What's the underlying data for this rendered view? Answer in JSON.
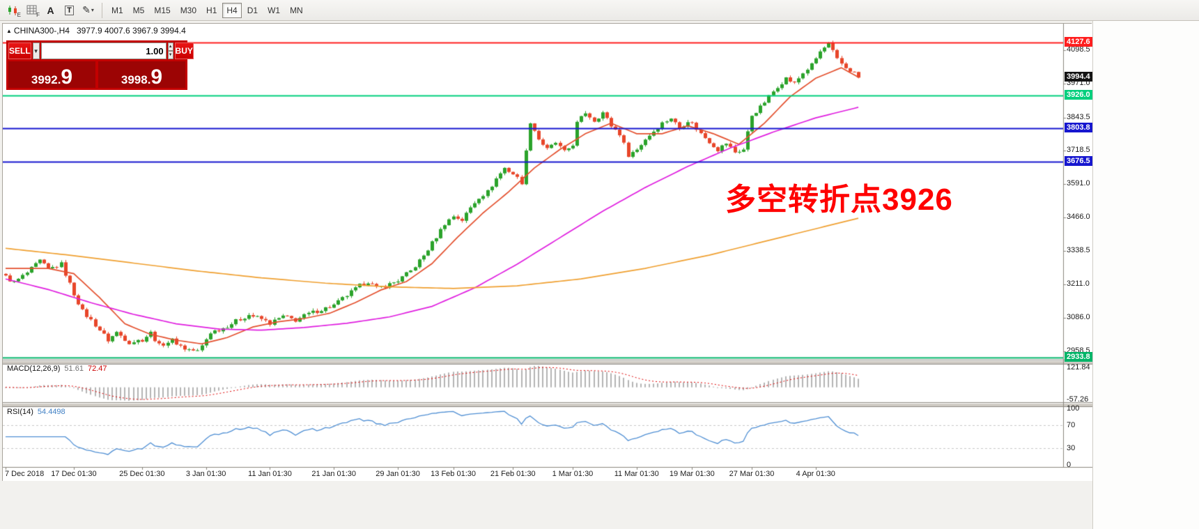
{
  "toolbar": {
    "tools": [
      {
        "name": "chart-mode-tool",
        "sub": "E"
      },
      {
        "name": "grid-tool",
        "sub": "F"
      },
      {
        "name": "text-tool",
        "label": "A"
      },
      {
        "name": "label-tool",
        "label": "T"
      },
      {
        "name": "draw-tool",
        "glyph": "✎",
        "arrow": "▾"
      }
    ],
    "timeframes": [
      "M1",
      "M5",
      "M15",
      "M30",
      "H1",
      "H4",
      "D1",
      "W1",
      "MN"
    ],
    "active_timeframe": "H4"
  },
  "chart_header": {
    "collapse_icon": "▲",
    "symbol": "CHINA300-,H4",
    "ohlc": "3977.9 4007.6 3967.9 3994.4"
  },
  "trade_panel": {
    "sell_label": "SELL",
    "buy_label": "BUY",
    "volume": "1.00",
    "dropdown_arrow": "▼",
    "spin_up": "▲",
    "spin_down": "▼",
    "sell_price": "3992.",
    "sell_price_big": "9",
    "buy_price": "3998.",
    "buy_price_big": "9"
  },
  "annotation": {
    "text": "多空转折点3926",
    "color": "#ff0000"
  },
  "price_axis": {
    "labels": [
      "4098.5",
      "3971.0",
      "3843.5",
      "3718.5",
      "3591.0",
      "3466.0",
      "3338.5",
      "3211.0",
      "3086.0",
      "2958.5"
    ],
    "badges": [
      {
        "text": "4127.6",
        "value": 4127.6,
        "bg": "#ff1e1e"
      },
      {
        "text": "3994.4",
        "value": 3994.4,
        "bg": "#141414"
      },
      {
        "text": "3926.0",
        "value": 3926.0,
        "bg": "#00cf7d"
      },
      {
        "text": "3803.8",
        "value": 3803.8,
        "bg": "#1616cf"
      },
      {
        "text": "3676.5",
        "value": 3676.5,
        "bg": "#1616cf"
      },
      {
        "text": "2933.8",
        "value": 2933.8,
        "bg": "#00b468"
      }
    ]
  },
  "time_axis": {
    "labels": [
      {
        "text": "7 Dec 2018",
        "bar": 0
      },
      {
        "text": "17 Dec 01:30",
        "bar": 16
      },
      {
        "text": "25 Dec 01:30",
        "bar": 32
      },
      {
        "text": "3 Jan 01:30",
        "bar": 47
      },
      {
        "text": "11 Jan 01:30",
        "bar": 62
      },
      {
        "text": "21 Jan 01:30",
        "bar": 77
      },
      {
        "text": "29 Jan 01:30",
        "bar": 92
      },
      {
        "text": "13 Feb 01:30",
        "bar": 105
      },
      {
        "text": "21 Feb 01:30",
        "bar": 119
      },
      {
        "text": "1 Mar 01:30",
        "bar": 133
      },
      {
        "text": "11 Mar 01:30",
        "bar": 148
      },
      {
        "text": "19 Mar 01:30",
        "bar": 161
      },
      {
        "text": "27 Mar 01:30",
        "bar": 175
      },
      {
        "text": "4 Apr 01:30",
        "bar": 190
      }
    ]
  },
  "chart_data": {
    "type": "candlestick",
    "symbol": "CHINA300-",
    "timeframe": "H4",
    "bars": 201,
    "last_price": 3994.4,
    "y_range": [
      2929,
      4159
    ],
    "colors": {
      "bull": "#2ba32b",
      "bear": "#e8462a",
      "ma_fast": "#e4502e",
      "ma_mid": "#e01ee0",
      "ma_slow": "#f0a030",
      "macd_hist": "#b4b4b4",
      "macd_signal": "#e00000",
      "rsi": "#4f8fd4"
    },
    "price_anchors": [
      [
        0,
        3240
      ],
      [
        2,
        3218
      ],
      [
        5,
        3255
      ],
      [
        8,
        3300
      ],
      [
        10,
        3268
      ],
      [
        13,
        3288
      ],
      [
        16,
        3175
      ],
      [
        18,
        3110
      ],
      [
        21,
        3058
      ],
      [
        24,
        3000
      ],
      [
        26,
        3030
      ],
      [
        29,
        2992
      ],
      [
        32,
        3002
      ],
      [
        34,
        3028
      ],
      [
        36,
        2980
      ],
      [
        39,
        3000
      ],
      [
        42,
        2968
      ],
      [
        45,
        2958
      ],
      [
        46,
        2978
      ],
      [
        48,
        3030
      ],
      [
        51,
        3046
      ],
      [
        54,
        3072
      ],
      [
        57,
        3096
      ],
      [
        60,
        3080
      ],
      [
        62,
        3064
      ],
      [
        65,
        3090
      ],
      [
        68,
        3076
      ],
      [
        71,
        3100
      ],
      [
        74,
        3116
      ],
      [
        77,
        3132
      ],
      [
        80,
        3170
      ],
      [
        83,
        3206
      ],
      [
        85,
        3222
      ],
      [
        87,
        3196
      ],
      [
        90,
        3212
      ],
      [
        92,
        3226
      ],
      [
        95,
        3262
      ],
      [
        98,
        3320
      ],
      [
        101,
        3392
      ],
      [
        103,
        3442
      ],
      [
        105,
        3470
      ],
      [
        107,
        3455
      ],
      [
        109,
        3502
      ],
      [
        111,
        3542
      ],
      [
        113,
        3562
      ],
      [
        115,
        3612
      ],
      [
        117,
        3652
      ],
      [
        119,
        3630
      ],
      [
        121,
        3598
      ],
      [
        123,
        3828
      ],
      [
        125,
        3762
      ],
      [
        127,
        3722
      ],
      [
        129,
        3748
      ],
      [
        131,
        3712
      ],
      [
        133,
        3742
      ],
      [
        134,
        3822
      ],
      [
        136,
        3862
      ],
      [
        138,
        3832
      ],
      [
        140,
        3862
      ],
      [
        142,
        3812
      ],
      [
        144,
        3782
      ],
      [
        146,
        3702
      ],
      [
        148,
        3722
      ],
      [
        150,
        3762
      ],
      [
        152,
        3792
      ],
      [
        154,
        3822
      ],
      [
        156,
        3842
      ],
      [
        158,
        3802
      ],
      [
        160,
        3832
      ],
      [
        161,
        3820
      ],
      [
        163,
        3782
      ],
      [
        165,
        3752
      ],
      [
        167,
        3722
      ],
      [
        169,
        3746
      ],
      [
        171,
        3712
      ],
      [
        173,
        3722
      ],
      [
        175,
        3852
      ],
      [
        177,
        3882
      ],
      [
        179,
        3922
      ],
      [
        181,
        3962
      ],
      [
        183,
        3992
      ],
      [
        185,
        3972
      ],
      [
        187,
        4012
      ],
      [
        189,
        4042
      ],
      [
        191,
        4092
      ],
      [
        193,
        4122
      ],
      [
        195,
        4062
      ],
      [
        197,
        4032
      ],
      [
        199,
        4012
      ],
      [
        200,
        3994.4
      ]
    ],
    "moving_averages": [
      {
        "name": "fast",
        "color_key": "ma_fast",
        "anchors": [
          [
            0,
            3272
          ],
          [
            10,
            3272
          ],
          [
            16,
            3252
          ],
          [
            22,
            3162
          ],
          [
            28,
            3062
          ],
          [
            34,
            3022
          ],
          [
            40,
            3000
          ],
          [
            46,
            2986
          ],
          [
            52,
            3010
          ],
          [
            58,
            3050
          ],
          [
            64,
            3070
          ],
          [
            70,
            3082
          ],
          [
            76,
            3102
          ],
          [
            82,
            3142
          ],
          [
            88,
            3190
          ],
          [
            94,
            3222
          ],
          [
            100,
            3290
          ],
          [
            106,
            3390
          ],
          [
            112,
            3482
          ],
          [
            118,
            3562
          ],
          [
            124,
            3652
          ],
          [
            130,
            3722
          ],
          [
            136,
            3782
          ],
          [
            142,
            3822
          ],
          [
            148,
            3782
          ],
          [
            154,
            3782
          ],
          [
            160,
            3812
          ],
          [
            166,
            3782
          ],
          [
            172,
            3742
          ],
          [
            178,
            3822
          ],
          [
            184,
            3922
          ],
          [
            190,
            3992
          ],
          [
            196,
            4032
          ],
          [
            200,
            3996
          ]
        ]
      },
      {
        "name": "mid",
        "color_key": "ma_mid",
        "anchors": [
          [
            0,
            3232
          ],
          [
            10,
            3192
          ],
          [
            20,
            3142
          ],
          [
            30,
            3098
          ],
          [
            40,
            3062
          ],
          [
            50,
            3042
          ],
          [
            60,
            3038
          ],
          [
            70,
            3048
          ],
          [
            80,
            3064
          ],
          [
            90,
            3088
          ],
          [
            100,
            3128
          ],
          [
            110,
            3198
          ],
          [
            120,
            3288
          ],
          [
            130,
            3388
          ],
          [
            140,
            3488
          ],
          [
            150,
            3578
          ],
          [
            160,
            3658
          ],
          [
            170,
            3728
          ],
          [
            180,
            3788
          ],
          [
            190,
            3842
          ],
          [
            200,
            3882
          ]
        ]
      },
      {
        "name": "slow",
        "color_key": "ma_slow",
        "anchors": [
          [
            0,
            3348
          ],
          [
            15,
            3322
          ],
          [
            30,
            3292
          ],
          [
            45,
            3262
          ],
          [
            60,
            3236
          ],
          [
            75,
            3216
          ],
          [
            90,
            3202
          ],
          [
            105,
            3196
          ],
          [
            120,
            3206
          ],
          [
            135,
            3232
          ],
          [
            150,
            3272
          ],
          [
            165,
            3322
          ],
          [
            180,
            3382
          ],
          [
            190,
            3422
          ],
          [
            200,
            3462
          ]
        ]
      }
    ],
    "hlines": [
      {
        "value": 4127.6,
        "color": "#ff1e1e",
        "width": 2
      },
      {
        "value": 3926.0,
        "color": "#00cf7d",
        "width": 2
      },
      {
        "value": 3803.8,
        "color": "#1616cf",
        "width": 2
      },
      {
        "value": 3676.5,
        "color": "#1616cf",
        "width": 2
      },
      {
        "value": 2933.8,
        "color": "#00b468",
        "width": 2
      }
    ],
    "macd": {
      "label": "MACD(12,26,9)",
      "value": "51.61",
      "signal": "72.47",
      "params": [
        12,
        26,
        9
      ],
      "axis": [
        "121.84",
        "-57.26"
      ]
    },
    "rsi": {
      "label": "RSI(14)",
      "value": "54.4498",
      "period": 14,
      "axis": [
        "100",
        "70",
        "30",
        "0"
      ],
      "levels": [
        70,
        30
      ]
    }
  }
}
